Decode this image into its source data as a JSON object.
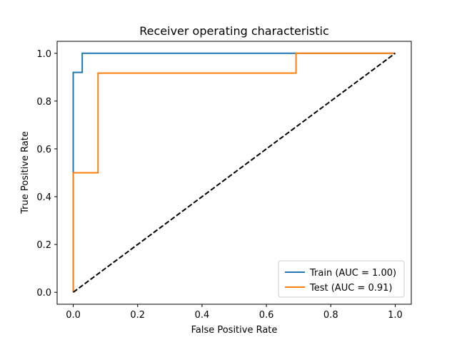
{
  "chart_data": {
    "type": "line",
    "title": "Receiver operating characteristic",
    "xlabel": "False Positive Rate",
    "ylabel": "True Positive Rate",
    "xlim": [
      -0.05,
      1.05
    ],
    "ylim": [
      -0.05,
      1.05
    ],
    "xticks": [
      0.0,
      0.2,
      0.4,
      0.6,
      0.8,
      1.0
    ],
    "yticks": [
      0.0,
      0.2,
      0.4,
      0.6,
      0.8,
      1.0
    ],
    "xtick_labels": [
      "0.0",
      "0.2",
      "0.4",
      "0.6",
      "0.8",
      "1.0"
    ],
    "ytick_labels": [
      "0.0",
      "0.2",
      "0.4",
      "0.6",
      "0.8",
      "1.0"
    ],
    "grid": false,
    "legend_position": "lower right",
    "series": [
      {
        "name": "Train (AUC = 1.00)",
        "color": "#1f77b4",
        "style": "solid",
        "x": [
          0.0,
          0.0,
          0.0,
          0.028,
          0.028,
          1.0
        ],
        "y": [
          0.0,
          0.0,
          0.92,
          0.92,
          1.0,
          1.0
        ]
      },
      {
        "name": "Test (AUC = 0.91)",
        "color": "#ff7f0e",
        "style": "solid",
        "x": [
          0.0,
          0.0,
          0.077,
          0.077,
          0.692,
          0.692,
          1.0
        ],
        "y": [
          0.0,
          0.5,
          0.5,
          0.917,
          0.917,
          1.0,
          1.0
        ]
      },
      {
        "color": "#000000",
        "style": "dashed",
        "x": [
          0.0,
          1.0
        ],
        "y": [
          0.0,
          1.0
        ]
      }
    ]
  }
}
